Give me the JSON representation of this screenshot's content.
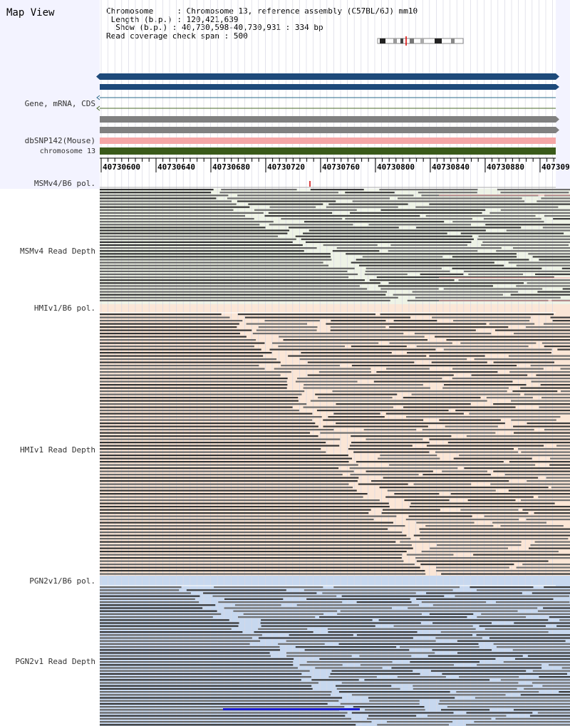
{
  "app": {
    "title": "Map View"
  },
  "header": {
    "chromosome_key": "Chromosome",
    "chromosome_value": "Chromosome 13, reference assembly (C57BL/6J) mm10",
    "length_key": "Length (b.p.)",
    "length_value": "120,421,639",
    "show_key": "Show (b.p.)",
    "show_value": "40,730,598-40,730,931 : 334 bp",
    "coverage_key": "Read coverage check span",
    "coverage_value": "500"
  },
  "tracks": {
    "gene_label": "Gene, mRNA, CDS",
    "snp_label": "dbSNP142(Mouse)",
    "chrom_label": "chromosome 13"
  },
  "ruler": {
    "ticks": [
      "40730600",
      "40730640",
      "40730680",
      "40730720",
      "40730760",
      "40730800",
      "40730840",
      "40730880",
      "407309"
    ]
  },
  "panels": {
    "msmv4_pol": "MSMv4/B6 pol.",
    "msmv4_depth": "MSMv4 Read Depth",
    "hmiv1_pol": "HMIv1/B6 pol.",
    "hmiv1_depth": "HMIv1 Read Depth",
    "pgn2v1_pol": "PGN2v1/B6 pol.",
    "pgn2v1_depth": "PGN2v1 Read Depth"
  },
  "colors": {
    "gene_blue": "#1e4a7a",
    "snp_pink": "#f4a6a6",
    "chrom_green": "#3a5a1a",
    "msm_bg": "#eef3e6",
    "hmi_bg": "#fbe6d6",
    "pgn_bg": "#c7d8ef",
    "read_dark": "#555555",
    "highlight_blue": "#1a1ad0"
  }
}
